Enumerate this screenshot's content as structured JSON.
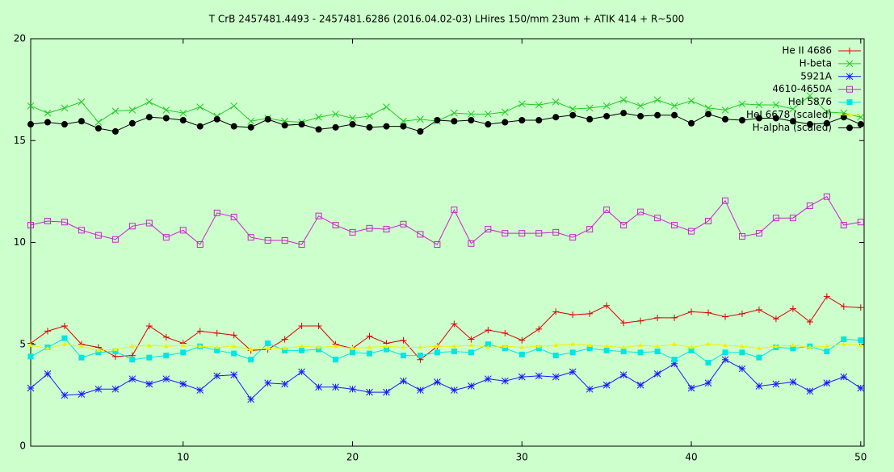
{
  "chart_data": {
    "type": "line",
    "title": "T CrB 2457481.4493 - 2457481.6286 (2016.04.02-03) LHires 150/mm 23um + ATIK 414 + R~500",
    "x": [
      1,
      2,
      3,
      4,
      5,
      6,
      7,
      8,
      9,
      10,
      11,
      12,
      13,
      14,
      15,
      16,
      17,
      18,
      19,
      20,
      21,
      22,
      23,
      24,
      25,
      26,
      27,
      28,
      29,
      30,
      31,
      32,
      33,
      34,
      35,
      36,
      37,
      38,
      39,
      40,
      41,
      42,
      43,
      44,
      45,
      46,
      47,
      48,
      49,
      50
    ],
    "xlim": [
      1,
      50.2
    ],
    "xticks": [
      10,
      20,
      30,
      40,
      50
    ],
    "ylim": [
      0,
      20
    ],
    "yticks": [
      0,
      5,
      10,
      15,
      20
    ],
    "legend": "top-right",
    "series": [
      {
        "name": "He II 4686",
        "color": "#dd0000",
        "marker": "plus",
        "values": [
          5.05,
          5.65,
          5.9,
          5.0,
          4.85,
          4.4,
          4.45,
          5.9,
          5.35,
          5.05,
          5.65,
          5.55,
          5.45,
          4.7,
          4.75,
          5.25,
          5.9,
          5.9,
          5.0,
          4.8,
          5.4,
          5.05,
          5.2,
          4.25,
          4.9,
          6.0,
          5.25,
          5.7,
          5.55,
          5.2,
          5.75,
          6.6,
          6.45,
          6.5,
          6.9,
          6.05,
          6.15,
          6.3,
          6.3,
          6.6,
          6.55,
          6.35,
          6.5,
          6.7,
          6.25,
          6.75,
          6.1,
          7.35,
          6.85,
          6.8
        ]
      },
      {
        "name": "H-beta",
        "color": "#22cc22",
        "marker": "cross",
        "values": [
          16.7,
          16.35,
          16.6,
          16.9,
          15.9,
          16.45,
          16.5,
          16.9,
          16.5,
          16.35,
          16.65,
          16.2,
          16.7,
          15.95,
          16.1,
          15.95,
          15.9,
          16.15,
          16.3,
          16.1,
          16.2,
          16.65,
          15.95,
          16.05,
          15.95,
          16.35,
          16.3,
          16.3,
          16.4,
          16.8,
          16.75,
          16.9,
          16.55,
          16.6,
          16.7,
          17.0,
          16.7,
          17.0,
          16.7,
          16.95,
          16.6,
          16.5,
          16.8,
          16.75,
          16.75,
          16.55,
          17.2,
          16.4,
          16.35,
          16.15
        ]
      },
      {
        "name": "5921A",
        "color": "#1a1aff",
        "marker": "star",
        "values": [
          2.85,
          3.55,
          2.5,
          2.55,
          2.8,
          2.8,
          3.3,
          3.05,
          3.3,
          3.05,
          2.75,
          3.45,
          3.5,
          2.3,
          3.1,
          3.05,
          3.65,
          2.9,
          2.9,
          2.8,
          2.65,
          2.65,
          3.2,
          2.75,
          3.15,
          2.75,
          2.95,
          3.3,
          3.2,
          3.4,
          3.45,
          3.4,
          3.65,
          2.8,
          3.0,
          3.5,
          3.0,
          3.55,
          4.05,
          2.85,
          3.1,
          4.25,
          3.8,
          2.95,
          3.05,
          3.15,
          2.7,
          3.1,
          3.4,
          2.85
        ]
      },
      {
        "name": "4610-4650A",
        "color": "#cc22cc",
        "marker": "box",
        "values": [
          10.85,
          11.05,
          11.0,
          10.6,
          10.35,
          10.15,
          10.8,
          10.95,
          10.25,
          10.6,
          9.9,
          11.45,
          11.25,
          10.25,
          10.1,
          10.1,
          9.9,
          11.3,
          10.85,
          10.5,
          10.7,
          10.65,
          10.9,
          10.4,
          9.9,
          11.6,
          9.95,
          10.65,
          10.45,
          10.45,
          10.45,
          10.5,
          10.25,
          10.65,
          11.6,
          10.85,
          11.5,
          11.2,
          10.85,
          10.55,
          11.05,
          12.05,
          10.3,
          10.45,
          11.2,
          11.2,
          11.8,
          12.25,
          10.85,
          11.0
        ]
      },
      {
        "name": "HeI 5876",
        "color": "#00e5e5",
        "marker": "filled-box",
        "values": [
          4.4,
          4.85,
          5.3,
          4.35,
          4.6,
          4.65,
          4.25,
          4.35,
          4.45,
          4.6,
          4.9,
          4.7,
          4.55,
          4.25,
          5.05,
          4.7,
          4.7,
          4.75,
          4.25,
          4.6,
          4.55,
          4.75,
          4.45,
          4.45,
          4.6,
          4.65,
          4.6,
          5.0,
          4.8,
          4.5,
          4.8,
          4.45,
          4.6,
          4.8,
          4.7,
          4.65,
          4.6,
          4.65,
          4.25,
          4.7,
          4.1,
          4.6,
          4.6,
          4.35,
          4.85,
          4.8,
          4.9,
          4.65,
          5.25,
          5.2
        ]
      },
      {
        "name": "HeI 6678 (scaled)",
        "color": "#f0f000",
        "marker": "triangle",
        "values": [
          4.95,
          4.8,
          5.0,
          4.9,
          4.7,
          4.75,
          4.9,
          4.95,
          4.9,
          4.95,
          4.9,
          4.85,
          4.9,
          4.75,
          4.8,
          4.8,
          4.9,
          4.85,
          4.9,
          4.8,
          4.85,
          4.9,
          4.85,
          4.85,
          4.9,
          4.9,
          4.95,
          4.85,
          4.9,
          4.85,
          4.9,
          4.95,
          5.0,
          4.95,
          4.9,
          4.85,
          4.95,
          4.9,
          5.0,
          4.85,
          5.0,
          4.95,
          4.9,
          4.8,
          4.9,
          4.95,
          4.85,
          4.9,
          5.0,
          4.95
        ]
      },
      {
        "name": "H-alpha (scaled)",
        "color": "#000000",
        "marker": "circle",
        "values": [
          15.8,
          15.9,
          15.8,
          15.95,
          15.6,
          15.45,
          15.85,
          16.15,
          16.1,
          16.0,
          15.7,
          16.05,
          15.7,
          15.65,
          16.05,
          15.75,
          15.8,
          15.55,
          15.65,
          15.8,
          15.65,
          15.7,
          15.7,
          15.45,
          16.0,
          15.95,
          16.0,
          15.8,
          15.9,
          16.0,
          16.0,
          16.15,
          16.25,
          16.05,
          16.2,
          16.35,
          16.2,
          16.25,
          16.25,
          15.85,
          16.3,
          16.05,
          16.0,
          16.1,
          16.1,
          15.95,
          15.8,
          15.85,
          16.15,
          15.8
        ]
      }
    ]
  }
}
